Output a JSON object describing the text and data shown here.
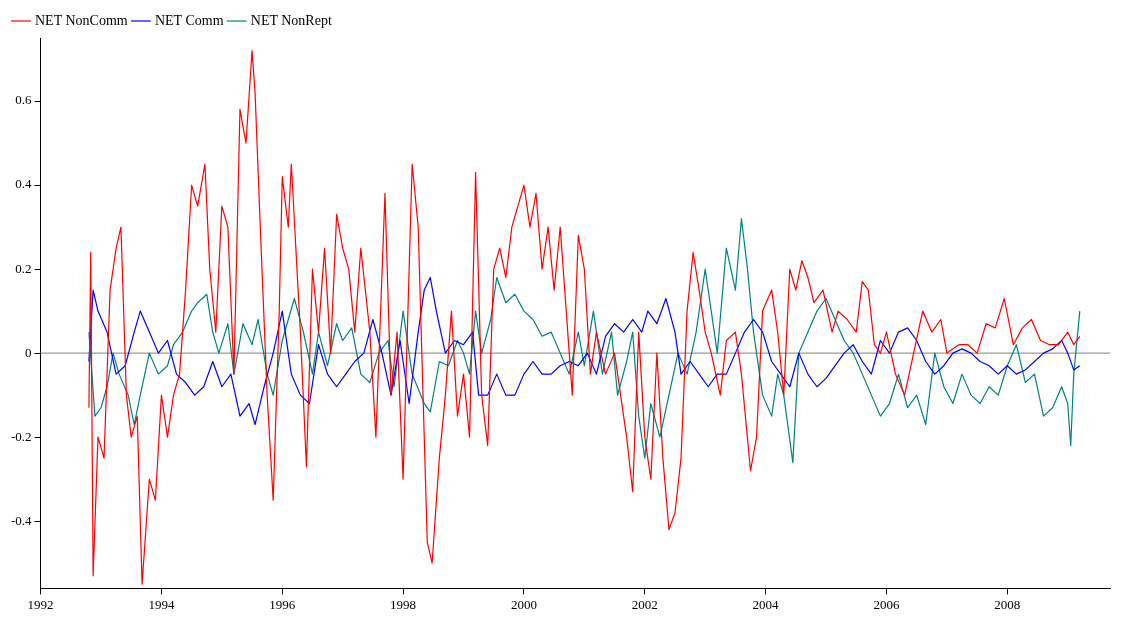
{
  "chart_data": {
    "type": "line",
    "xlim": [
      1992,
      2009.7
    ],
    "xticks": [
      1992,
      1994,
      1996,
      1998,
      2000,
      2002,
      2004,
      2006,
      2008
    ],
    "ylim": [
      -0.56,
      0.75
    ],
    "yticks": [
      -0.4,
      -0.2,
      0,
      0.2,
      0.4,
      0.6
    ],
    "grid": false,
    "legend": "top left",
    "line_style": "solid",
    "marker": "none",
    "ref_lines": [
      {
        "axis": "y",
        "value": 0,
        "color": "#808080"
      }
    ],
    "series": [
      {
        "name": "NET NonComm",
        "color": "#ff0000",
        "x": [
          1992.8,
          1992.83,
          1992.87,
          1992.95,
          1993.05,
          1993.15,
          1993.25,
          1993.33,
          1993.42,
          1993.5,
          1993.6,
          1993.68,
          1993.8,
          1993.9,
          1994.0,
          1994.1,
          1994.2,
          1994.3,
          1994.4,
          1994.5,
          1994.6,
          1994.72,
          1994.8,
          1994.9,
          1995.0,
          1995.1,
          1995.2,
          1995.3,
          1995.4,
          1995.5,
          1995.55,
          1995.65,
          1995.75,
          1995.85,
          1995.95,
          1996.0,
          1996.1,
          1996.15,
          1996.3,
          1996.4,
          1996.5,
          1996.6,
          1996.7,
          1996.8,
          1996.9,
          1997.0,
          1997.1,
          1997.2,
          1997.3,
          1997.45,
          1997.55,
          1997.7,
          1997.8,
          1997.9,
          1998.0,
          1998.15,
          1998.25,
          1998.4,
          1998.48,
          1998.6,
          1998.7,
          1998.8,
          1998.9,
          1999.0,
          1999.1,
          1999.2,
          1999.3,
          1999.4,
          1999.5,
          1999.6,
          1999.7,
          1999.8,
          1999.9,
          2000.0,
          2000.1,
          2000.2,
          2000.3,
          2000.4,
          2000.5,
          2000.6,
          2000.7,
          2000.8,
          2000.9,
          2001.0,
          2001.1,
          2001.2,
          2001.35,
          2001.5,
          2001.6,
          2001.7,
          2001.8,
          2001.9,
          2002.0,
          2002.1,
          2002.2,
          2002.3,
          2002.4,
          2002.5,
          2002.6,
          2002.7,
          2002.8,
          2002.9,
          2003.0,
          2003.1,
          2003.25,
          2003.35,
          2003.5,
          2003.6,
          2003.75,
          2003.85,
          2003.95,
          2004.1,
          2004.2,
          2004.3,
          2004.4,
          2004.5,
          2004.6,
          2004.7,
          2004.8,
          2004.95,
          2005.1,
          2005.2,
          2005.35,
          2005.5,
          2005.6,
          2005.7,
          2005.8,
          2005.9,
          2006.0,
          2006.15,
          2006.3,
          2006.45,
          2006.6,
          2006.75,
          2006.9,
          2007.0,
          2007.2,
          2007.35,
          2007.5,
          2007.65,
          2007.8,
          2007.95,
          2008.1,
          2008.25,
          2008.4,
          2008.55,
          2008.7,
          2008.85,
          2009.0,
          2009.1,
          2009.2
        ],
        "values": [
          -0.13,
          0.24,
          -0.53,
          -0.2,
          -0.25,
          0.15,
          0.25,
          0.3,
          -0.1,
          -0.2,
          -0.15,
          -0.55,
          -0.3,
          -0.35,
          -0.1,
          -0.2,
          -0.1,
          -0.05,
          0.15,
          0.4,
          0.35,
          0.45,
          0.2,
          0.05,
          0.35,
          0.3,
          -0.05,
          0.58,
          0.5,
          0.72,
          0.62,
          0.25,
          -0.1,
          -0.35,
          0.1,
          0.42,
          0.3,
          0.45,
          0.05,
          -0.27,
          0.2,
          0.05,
          0.25,
          0.0,
          0.33,
          0.25,
          0.2,
          0.05,
          0.25,
          0.05,
          -0.2,
          0.38,
          -0.1,
          0.05,
          -0.3,
          0.45,
          0.3,
          -0.45,
          -0.5,
          -0.25,
          -0.1,
          0.1,
          -0.15,
          -0.05,
          -0.2,
          0.43,
          -0.1,
          -0.22,
          0.2,
          0.25,
          0.18,
          0.3,
          0.35,
          0.4,
          0.3,
          0.38,
          0.2,
          0.3,
          0.15,
          0.3,
          0.1,
          -0.1,
          0.28,
          0.2,
          -0.05,
          0.05,
          -0.05,
          0.0,
          -0.1,
          -0.2,
          -0.33,
          0.05,
          -0.2,
          -0.3,
          0.0,
          -0.25,
          -0.42,
          -0.38,
          -0.25,
          0.1,
          0.24,
          0.15,
          0.05,
          0.0,
          -0.1,
          0.03,
          0.05,
          -0.05,
          -0.28,
          -0.2,
          0.1,
          0.15,
          0.05,
          -0.1,
          0.2,
          0.15,
          0.22,
          0.18,
          0.12,
          0.15,
          0.05,
          0.1,
          0.08,
          0.05,
          0.17,
          0.15,
          0.02,
          0.0,
          0.05,
          -0.05,
          -0.1,
          0.0,
          0.1,
          0.05,
          0.08,
          0.0,
          0.02,
          0.02,
          0.0,
          0.07,
          0.06,
          0.13,
          0.02,
          0.06,
          0.08,
          0.03,
          0.02,
          0.02,
          0.05,
          0.02,
          0.04
        ]
      },
      {
        "name": "NET Comm",
        "color": "#0000ff",
        "x": [
          1992.8,
          1992.87,
          1992.95,
          1993.1,
          1993.25,
          1993.4,
          1993.55,
          1993.65,
          1993.8,
          1993.95,
          1994.1,
          1994.25,
          1994.4,
          1994.55,
          1994.7,
          1994.85,
          1995.0,
          1995.15,
          1995.3,
          1995.45,
          1995.55,
          1995.7,
          1995.85,
          1996.0,
          1996.15,
          1996.3,
          1996.45,
          1996.6,
          1996.75,
          1996.9,
          1997.05,
          1997.2,
          1997.35,
          1997.5,
          1997.65,
          1997.8,
          1997.95,
          1998.1,
          1998.25,
          1998.35,
          1998.45,
          1998.55,
          1998.7,
          1998.85,
          1999.0,
          1999.15,
          1999.25,
          1999.4,
          1999.55,
          1999.7,
          1999.85,
          2000.0,
          2000.15,
          2000.3,
          2000.45,
          2000.6,
          2000.75,
          2000.9,
          2001.05,
          2001.2,
          2001.35,
          2001.5,
          2001.65,
          2001.8,
          2001.95,
          2002.05,
          2002.2,
          2002.35,
          2002.5,
          2002.6,
          2002.75,
          2002.9,
          2003.05,
          2003.2,
          2003.35,
          2003.5,
          2003.65,
          2003.8,
          2003.95,
          2004.1,
          2004.25,
          2004.4,
          2004.55,
          2004.7,
          2004.85,
          2005.0,
          2005.15,
          2005.3,
          2005.45,
          2005.6,
          2005.75,
          2005.9,
          2006.05,
          2006.2,
          2006.35,
          2006.5,
          2006.65,
          2006.8,
          2006.95,
          2007.1,
          2007.25,
          2007.4,
          2007.55,
          2007.7,
          2007.85,
          2008.0,
          2008.15,
          2008.3,
          2008.45,
          2008.6,
          2008.75,
          2008.9,
          2009.0,
          2009.1,
          2009.2
        ],
        "values": [
          -0.02,
          0.15,
          0.1,
          0.05,
          -0.05,
          -0.03,
          0.05,
          0.1,
          0.05,
          0.0,
          0.03,
          -0.05,
          -0.07,
          -0.1,
          -0.08,
          -0.02,
          -0.08,
          -0.05,
          -0.15,
          -0.12,
          -0.17,
          -0.08,
          0.0,
          0.1,
          -0.05,
          -0.1,
          -0.12,
          0.02,
          -0.05,
          -0.08,
          -0.05,
          -0.02,
          0.0,
          0.08,
          0.0,
          -0.1,
          0.03,
          -0.12,
          0.05,
          0.15,
          0.18,
          0.1,
          0.0,
          0.03,
          0.02,
          0.05,
          -0.1,
          -0.1,
          -0.05,
          -0.1,
          -0.1,
          -0.05,
          -0.02,
          -0.05,
          -0.05,
          -0.03,
          -0.02,
          -0.03,
          0.0,
          -0.05,
          0.04,
          0.07,
          0.05,
          0.08,
          0.05,
          0.1,
          0.07,
          0.13,
          0.05,
          -0.05,
          -0.02,
          -0.05,
          -0.08,
          -0.05,
          -0.05,
          0.0,
          0.05,
          0.08,
          0.05,
          -0.02,
          -0.05,
          -0.08,
          0.0,
          -0.05,
          -0.08,
          -0.06,
          -0.03,
          0.0,
          0.02,
          -0.02,
          -0.05,
          0.03,
          0.0,
          0.05,
          0.06,
          0.03,
          -0.02,
          -0.05,
          -0.03,
          0.0,
          0.01,
          0.0,
          -0.02,
          -0.03,
          -0.05,
          -0.03,
          -0.05,
          -0.04,
          -0.02,
          0.0,
          0.01,
          0.03,
          0.0,
          -0.04,
          -0.03
        ]
      },
      {
        "name": "NET NonRept",
        "color": "#008080",
        "x": [
          1992.8,
          1992.9,
          1993.0,
          1993.1,
          1993.2,
          1993.3,
          1993.45,
          1993.55,
          1993.65,
          1993.8,
          1993.95,
          1994.1,
          1994.2,
          1994.35,
          1994.5,
          1994.6,
          1994.75,
          1994.85,
          1994.95,
          1995.1,
          1995.2,
          1995.35,
          1995.5,
          1995.6,
          1995.75,
          1995.85,
          1996.0,
          1996.1,
          1996.2,
          1996.35,
          1996.5,
          1996.6,
          1996.75,
          1996.9,
          1997.0,
          1997.15,
          1997.3,
          1997.45,
          1997.6,
          1997.75,
          1997.85,
          1998.0,
          1998.15,
          1998.35,
          1998.45,
          1998.6,
          1998.75,
          1998.9,
          1999.0,
          1999.1,
          1999.2,
          1999.3,
          1999.45,
          1999.55,
          1999.7,
          1999.85,
          2000.0,
          2000.15,
          2000.3,
          2000.45,
          2000.6,
          2000.75,
          2000.9,
          2001.0,
          2001.15,
          2001.3,
          2001.45,
          2001.55,
          2001.7,
          2001.8,
          2001.9,
          2002.0,
          2002.1,
          2002.25,
          2002.4,
          2002.55,
          2002.7,
          2002.85,
          2003.0,
          2003.1,
          2003.2,
          2003.35,
          2003.5,
          2003.6,
          2003.7,
          2003.8,
          2003.95,
          2004.1,
          2004.2,
          2004.3,
          2004.45,
          2004.55,
          2004.7,
          2004.85,
          2005.0,
          2005.15,
          2005.3,
          2005.45,
          2005.6,
          2005.75,
          2005.9,
          2006.05,
          2006.2,
          2006.35,
          2006.5,
          2006.65,
          2006.8,
          2006.95,
          2007.1,
          2007.25,
          2007.4,
          2007.55,
          2007.7,
          2007.85,
          2008.0,
          2008.15,
          2008.3,
          2008.45,
          2008.6,
          2008.75,
          2008.9,
          2009.0,
          2009.05,
          2009.1,
          2009.2
        ],
        "values": [
          0.05,
          -0.15,
          -0.13,
          -0.08,
          0.0,
          -0.05,
          -0.1,
          -0.17,
          -0.1,
          0.0,
          -0.05,
          -0.03,
          0.02,
          0.05,
          0.1,
          0.12,
          0.14,
          0.05,
          0.0,
          0.07,
          -0.05,
          0.07,
          0.02,
          0.08,
          -0.05,
          -0.1,
          0.03,
          0.08,
          0.13,
          0.05,
          -0.05,
          0.05,
          -0.03,
          0.07,
          0.03,
          0.06,
          -0.05,
          -0.07,
          0.0,
          0.03,
          -0.08,
          0.1,
          -0.05,
          -0.12,
          -0.14,
          -0.02,
          -0.03,
          0.03,
          0.0,
          -0.05,
          0.1,
          0.0,
          0.08,
          0.18,
          0.12,
          0.14,
          0.1,
          0.08,
          0.04,
          0.05,
          0.0,
          -0.05,
          0.05,
          -0.03,
          0.1,
          -0.05,
          0.05,
          -0.1,
          -0.02,
          0.05,
          -0.15,
          -0.25,
          -0.12,
          -0.2,
          -0.1,
          0.0,
          -0.05,
          0.05,
          0.2,
          0.1,
          0.0,
          0.25,
          0.15,
          0.32,
          0.2,
          0.05,
          -0.1,
          -0.15,
          -0.05,
          -0.1,
          -0.26,
          0.0,
          0.05,
          0.1,
          0.13,
          0.08,
          0.03,
          0.0,
          -0.05,
          -0.1,
          -0.15,
          -0.12,
          -0.05,
          -0.13,
          -0.1,
          -0.17,
          0.0,
          -0.08,
          -0.12,
          -0.05,
          -0.1,
          -0.12,
          -0.08,
          -0.1,
          -0.03,
          0.02,
          -0.07,
          -0.05,
          -0.15,
          -0.13,
          -0.08,
          -0.12,
          -0.22,
          -0.05,
          0.1
        ]
      }
    ]
  }
}
